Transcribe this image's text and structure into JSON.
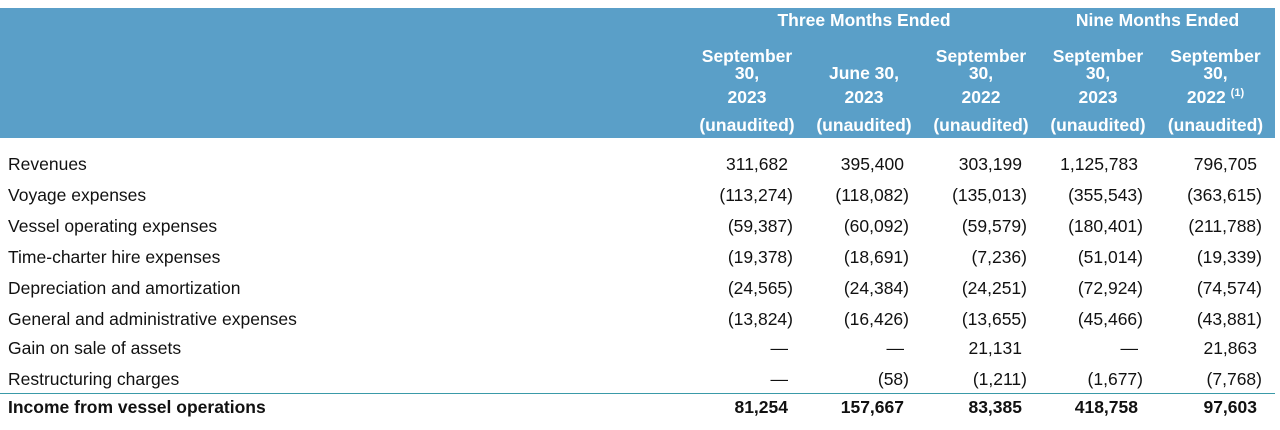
{
  "table": {
    "groups": [
      {
        "label": "Three Months Ended",
        "span": 3
      },
      {
        "label": "Nine Months Ended",
        "span": 2
      }
    ],
    "columns": [
      {
        "date": "September 30,",
        "year": "2023",
        "status": "(unaudited)"
      },
      {
        "date": "June 30,",
        "year": "2023",
        "status": "(unaudited)"
      },
      {
        "date": "September 30,",
        "year": "2022",
        "status": "(unaudited)"
      },
      {
        "date": "September 30,",
        "year": "2023",
        "status": "(unaudited)"
      },
      {
        "date": "September 30,",
        "year": "2022",
        "footnote": "(1)",
        "status": "(unaudited)"
      }
    ],
    "rows": [
      {
        "label": "Revenues",
        "values": [
          "311,682",
          "395,400",
          "303,199",
          "1,125,783",
          "796,705"
        ]
      },
      {
        "label": "Voyage expenses",
        "values": [
          "(113,274)",
          "(118,082)",
          "(135,013)",
          "(355,543)",
          "(363,615)"
        ]
      },
      {
        "label": "Vessel operating expenses",
        "values": [
          "(59,387)",
          "(60,092)",
          "(59,579)",
          "(180,401)",
          "(211,788)"
        ]
      },
      {
        "label": "Time-charter hire expenses",
        "values": [
          "(19,378)",
          "(18,691)",
          "(7,236)",
          "(51,014)",
          "(19,339)"
        ]
      },
      {
        "label": "Depreciation and amortization",
        "values": [
          "(24,565)",
          "(24,384)",
          "(24,251)",
          "(72,924)",
          "(74,574)"
        ]
      },
      {
        "label": "General and administrative expenses",
        "values": [
          "(13,824)",
          "(16,426)",
          "(13,655)",
          "(45,466)",
          "(43,881)"
        ]
      },
      {
        "label": "Gain on sale of assets",
        "values": [
          "—",
          "—",
          "21,131",
          "—",
          "21,863"
        ]
      },
      {
        "label": "Restructuring charges",
        "values": [
          "—",
          "(58)",
          "(1,211)",
          "(1,677)",
          "(7,768)"
        ]
      },
      {
        "label": "Income from vessel operations",
        "values": [
          "81,254",
          "157,667",
          "83,385",
          "418,758",
          "97,603"
        ],
        "bold": true
      }
    ]
  }
}
